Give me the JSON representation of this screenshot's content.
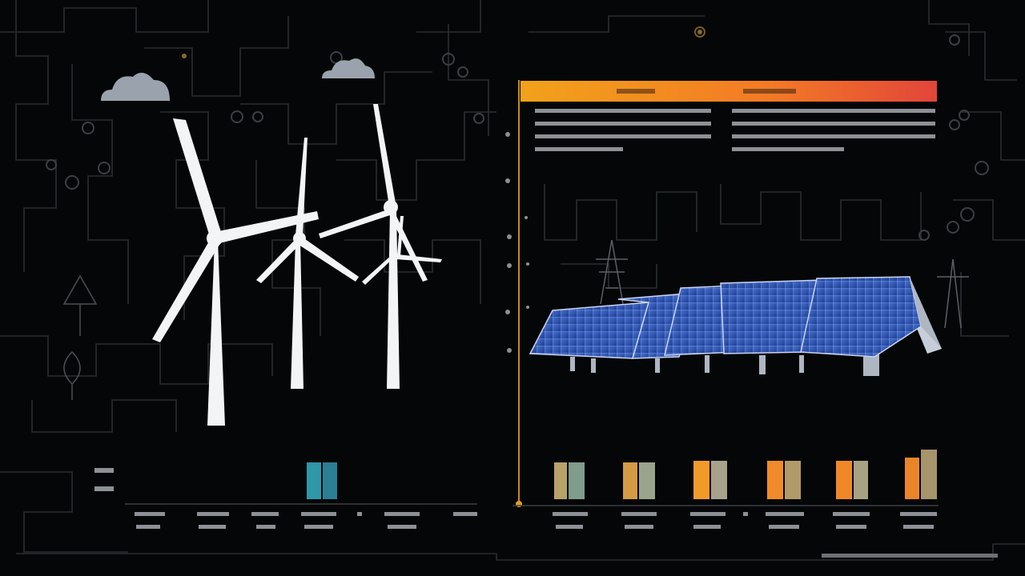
{
  "colors": {
    "background": "#050607",
    "circuit": "#2b2f33",
    "circuit_accent": "#3a3f45",
    "header_gradient": [
      "#f2a21a",
      "#f36a2a",
      "#e2453a"
    ],
    "axis_line": "#c88a1a",
    "turbine": "#f3f4f6",
    "solar_panel": "#2c57b8",
    "solar_panel_highlight": "#6a8be0",
    "cloud": "#9aa2aa",
    "header_text": "#1a1a1a",
    "body_text": "#c9c9c9",
    "bar_teal": "#2e97a8",
    "bar_amber": "#f09a2a",
    "bar_olive": "#9ca06a"
  },
  "icons": [
    "cloud-icon",
    "cloud-icon",
    "wind-turbine-icon",
    "solar-panel-icon",
    "power-pylon-icon",
    "tree-icon"
  ]
}
